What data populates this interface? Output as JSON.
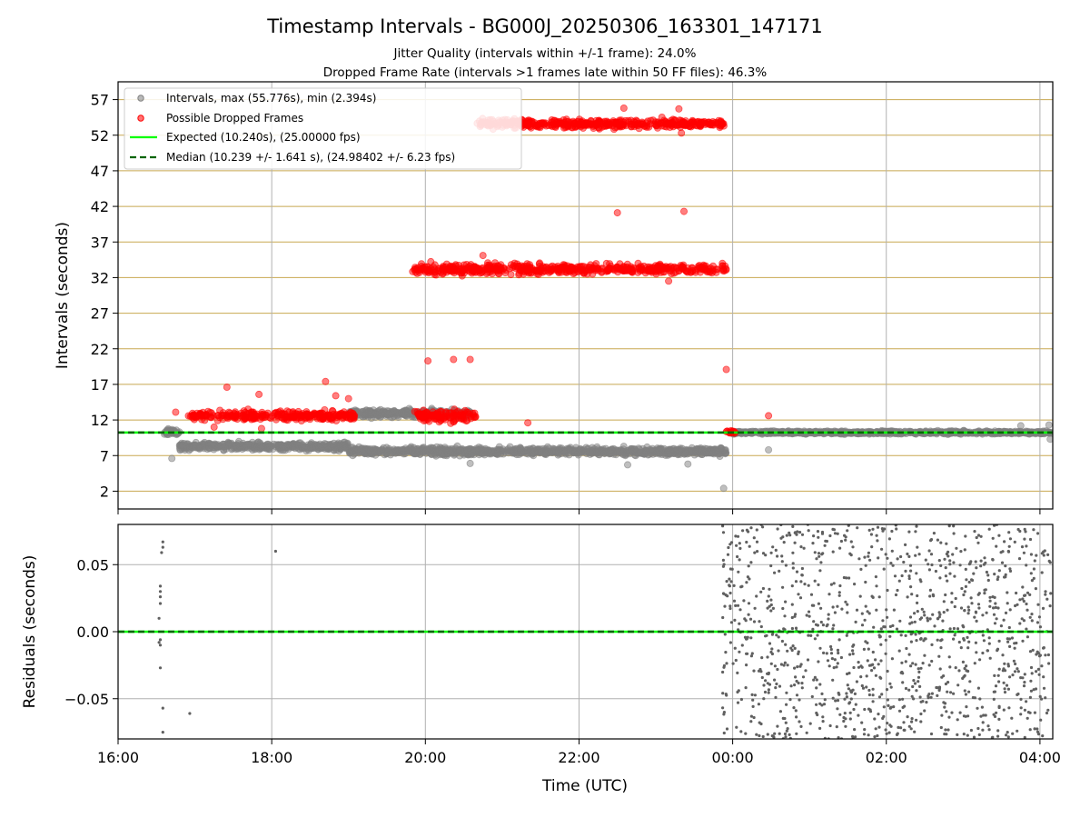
{
  "title": "Timestamp Intervals - BG000J_20250306_163301_147171",
  "subtitle_lines": [
    "Jitter Quality (intervals within +/-1 frame): 24.0%",
    "Dropped Frame Rate (intervals >1 frames late within 50 FF files): 46.3%"
  ],
  "colors": {
    "intervals": "#808080",
    "dropped": "#ff0000",
    "expected": "#00ff00",
    "median": "#006400",
    "hgrid_top": "#c8a850",
    "grid": "#b0b0b0",
    "residual_points": "#606060"
  },
  "chart_data": [
    {
      "type": "scatter",
      "name": "intervals-panel",
      "xlabel": "",
      "ylabel": "Intervals (seconds)",
      "xlim": [
        "16:00",
        "04:10"
      ],
      "x_ticks": [
        "16:00",
        "18:00",
        "20:00",
        "22:00",
        "00:00",
        "02:00",
        "04:00"
      ],
      "ylim": [
        -0.5,
        59.5
      ],
      "y_ticks": [
        "2",
        "7",
        "12",
        "17",
        "22",
        "27",
        "32",
        "37",
        "42",
        "47",
        "52",
        "57"
      ],
      "grid": true,
      "legend_position": "top-left",
      "legend": [
        "Intervals, max (55.776s), min (2.394s)",
        "Possible Dropped Frames",
        "Expected (10.240s), (25.00000 fps)",
        "Median (10.239 +/- 1.641 s), (24.98402 +/- 6.23 fps)"
      ],
      "expected_line": 10.24,
      "median_line": 10.239,
      "series": [
        {
          "name": "Intervals",
          "bands": [
            {
              "x_range": [
                "16:35",
                "16:48"
              ],
              "y_center": 10.3,
              "spread": 0.4
            },
            {
              "x_range": [
                "16:48",
                "19:00"
              ],
              "y_center": 8.3,
              "spread": 0.5
            },
            {
              "x_range": [
                "19:00",
                "23:55"
              ],
              "y_center": 7.6,
              "spread": 0.5
            },
            {
              "x_range": [
                "19:00",
                "20:35"
              ],
              "y_center": 12.9,
              "spread": 0.5
            },
            {
              "x_range": [
                "00:00",
                "04:10"
              ],
              "y_center": 10.24,
              "spread": 0.2
            }
          ],
          "outliers": [
            [
              "16:42",
              6.6
            ],
            [
              "19:25",
              12.4
            ],
            [
              "20:35",
              5.9
            ],
            [
              "22:38",
              5.7
            ],
            [
              "23:25",
              5.8
            ],
            [
              "23:50",
              6.9
            ],
            [
              "23:53",
              2.4
            ],
            [
              "00:28",
              7.8
            ],
            [
              "03:45",
              11.2
            ],
            [
              "04:07",
              11.3
            ],
            [
              "04:08",
              9.3
            ]
          ]
        },
        {
          "name": "Possible Dropped Frames",
          "bands": [
            {
              "x_range": [
                "16:55",
                "19:05"
              ],
              "y_center": 12.6,
              "spread": 0.6
            },
            {
              "x_range": [
                "19:50",
                "20:40"
              ],
              "y_center": 12.6,
              "spread": 0.8
            },
            {
              "x_range": [
                "19:50",
                "23:55"
              ],
              "y_center": 33.2,
              "spread": 0.7
            },
            {
              "x_range": [
                "20:40",
                "23:55"
              ],
              "y_center": 53.6,
              "spread": 0.6
            },
            {
              "x_range": [
                "23:55",
                "00:02"
              ],
              "y_center": 10.3,
              "spread": 0.2
            }
          ],
          "outliers": [
            [
              "16:45",
              13.1
            ],
            [
              "17:25",
              16.6
            ],
            [
              "17:50",
              15.6
            ],
            [
              "18:42",
              17.4
            ],
            [
              "18:50",
              15.4
            ],
            [
              "19:00",
              15.0
            ],
            [
              "17:15",
              11.0
            ],
            [
              "17:52",
              10.8
            ],
            [
              "20:02",
              20.3
            ],
            [
              "20:22",
              20.5
            ],
            [
              "20:35",
              20.5
            ],
            [
              "21:05",
              53.6
            ],
            [
              "21:15",
              54.2
            ],
            [
              "21:20",
              11.6
            ],
            [
              "22:30",
              41.1
            ],
            [
              "22:35",
              55.8
            ],
            [
              "23:22",
              41.3
            ],
            [
              "23:20",
              52.3
            ],
            [
              "23:18",
              55.7
            ],
            [
              "20:45",
              35.1
            ],
            [
              "23:10",
              31.5
            ],
            [
              "23:55",
              19.1
            ],
            [
              "00:28",
              12.6
            ]
          ]
        }
      ]
    },
    {
      "type": "scatter",
      "name": "residuals-panel",
      "xlabel": "Time (UTC)",
      "ylabel": "Residuals (seconds)",
      "xlim": [
        "16:00",
        "04:10"
      ],
      "x_ticks": [
        "16:00",
        "18:00",
        "20:00",
        "22:00",
        "00:00",
        "02:00",
        "04:00"
      ],
      "ylim": [
        -0.08,
        0.08
      ],
      "y_ticks": [
        "0.05",
        "0.00",
        "−0.05"
      ],
      "grid": true,
      "zero_line": 0.0,
      "series": [
        {
          "name": "Residuals",
          "points": [
            [
              "16:35",
              0.067
            ],
            [
              "16:35",
              0.063
            ],
            [
              "16:34",
              0.059
            ],
            [
              "16:33",
              0.034
            ],
            [
              "16:33",
              0.03
            ],
            [
              "16:33",
              0.026
            ],
            [
              "16:33",
              0.021
            ],
            [
              "16:32",
              0.01
            ],
            [
              "16:33",
              -0.006
            ],
            [
              "16:32",
              -0.008
            ],
            [
              "16:33",
              -0.01
            ],
            [
              "16:33",
              -0.027
            ],
            [
              "16:35",
              -0.057
            ],
            [
              "16:35",
              -0.075
            ],
            [
              "16:56",
              -0.061
            ],
            [
              "18:03",
              0.06
            ]
          ],
          "scatter_region": {
            "x_range": [
              "23:52",
              "04:10"
            ],
            "y_range": [
              -0.08,
              0.08
            ]
          }
        }
      ]
    }
  ]
}
